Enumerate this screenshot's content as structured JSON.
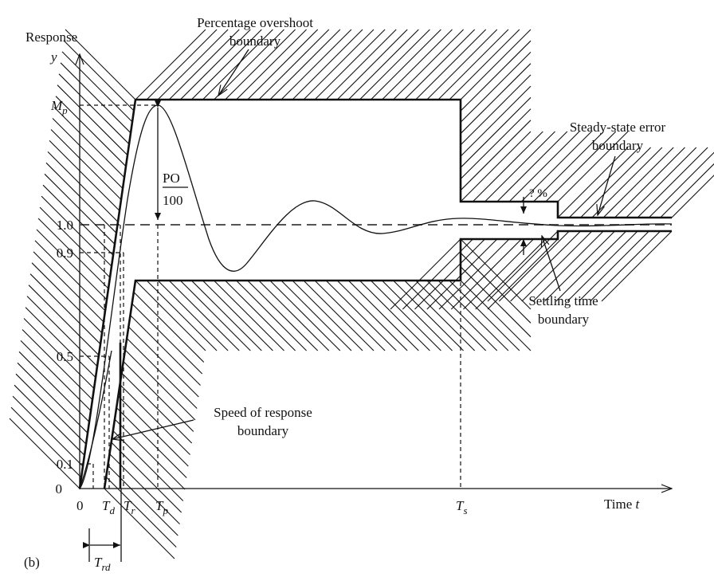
{
  "panel_label": "(b)",
  "axes": {
    "y_title": "Response",
    "y_symbol": "y",
    "x_title": "Time",
    "x_symbol": "t",
    "y_ticks": [
      "0",
      "0.1",
      "0.5",
      "0.9",
      "1.0"
    ],
    "y_mp_main": "M",
    "y_mp_sub": "p",
    "x_origin": "0"
  },
  "time_labels": {
    "td_main": "T",
    "td_sub": "d",
    "tr_main": "T",
    "tr_sub": "r",
    "tp_main": "T",
    "tp_sub": "p",
    "ts_main": "T",
    "ts_sub": "s",
    "trd_main": "T",
    "trd_sub": "rd"
  },
  "annotations": {
    "overshoot_line1": "Percentage overshoot",
    "overshoot_line2": "boundary",
    "po_numerator": "PO",
    "po_denominator": "100",
    "steady_line1": "Steady-state error",
    "steady_line2": "boundary",
    "settling_line1": "Settling time",
    "settling_line2": "boundary",
    "speed_line1": "Speed of response",
    "speed_line2": "boundary",
    "percent_band": "? %"
  }
}
